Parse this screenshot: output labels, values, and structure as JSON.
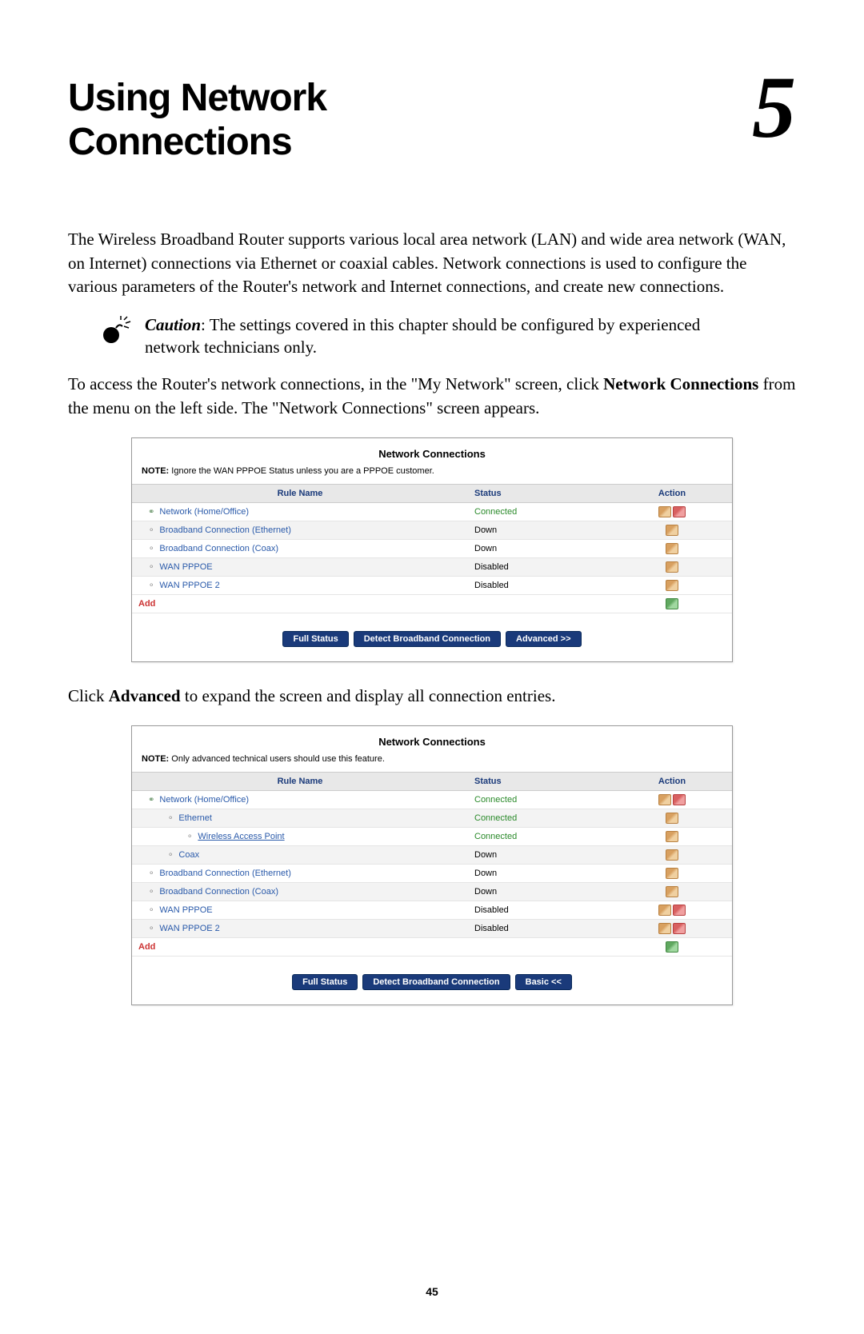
{
  "chapter": {
    "title_line1": "Using Network",
    "title_line2": "Connections",
    "number": "5"
  },
  "intro_paragraph": "The Wireless Broadband Router supports various local area network (LAN) and wide area network (WAN, on Internet) connections via Ethernet or coaxial cables. Network connections is used to configure the various parameters of the Router's network and Internet connections, and create new connections.",
  "caution": {
    "label": "Caution",
    "text": ": The settings covered in this chapter should be configured by experienced network technicians only."
  },
  "access_text": {
    "prefix": "To access the Router's network connections, in the \"My Network\" screen, click ",
    "bold": "Network Connections",
    "suffix": " from the menu on the left side. The \"Network Connections\" screen appears."
  },
  "screenshot1": {
    "title": "Network Connections",
    "note_label": "NOTE:",
    "note_text": " Ignore the WAN PPPOE Status unless you are a PPPOE customer.",
    "headers": {
      "rule": "Rule Name",
      "status": "Status",
      "action": "Action"
    },
    "rows": [
      {
        "name": "Network (Home/Office)",
        "status": "Connected",
        "status_class": "status-connected",
        "icon": "icon-net",
        "indent": 0,
        "actions": [
          "edit",
          "del"
        ],
        "alt": false
      },
      {
        "name": "Broadband Connection (Ethernet)",
        "status": "Down",
        "status_class": "status-down",
        "icon": "icon-plug",
        "indent": 0,
        "actions": [
          "edit"
        ],
        "alt": true
      },
      {
        "name": "Broadband Connection (Coax)",
        "status": "Down",
        "status_class": "status-down",
        "icon": "icon-plug",
        "indent": 0,
        "actions": [
          "edit"
        ],
        "alt": false
      },
      {
        "name": "WAN PPPOE",
        "status": "Disabled",
        "status_class": "status-disabled",
        "icon": "icon-plug",
        "indent": 0,
        "actions": [
          "edit"
        ],
        "alt": true
      },
      {
        "name": "WAN PPPOE 2",
        "status": "Disabled",
        "status_class": "status-disabled",
        "icon": "icon-plug",
        "indent": 0,
        "actions": [
          "edit"
        ],
        "alt": false
      }
    ],
    "add_label": "Add",
    "buttons": [
      "Full Status",
      "Detect Broadband Connection",
      "Advanced >>"
    ]
  },
  "click_text": {
    "prefix": "Click ",
    "bold": "Advanced",
    "suffix": " to expand the screen and display all connection entries."
  },
  "screenshot2": {
    "title": "Network Connections",
    "note_label": "NOTE:",
    "note_text": " Only advanced technical users should use this feature.",
    "headers": {
      "rule": "Rule Name",
      "status": "Status",
      "action": "Action"
    },
    "rows": [
      {
        "name": "Network (Home/Office)",
        "status": "Connected",
        "status_class": "status-connected",
        "icon": "icon-net",
        "indent": 0,
        "actions": [
          "edit",
          "del"
        ],
        "alt": false,
        "underline": false
      },
      {
        "name": "Ethernet",
        "status": "Connected",
        "status_class": "status-connected",
        "icon": "icon-plug",
        "indent": 1,
        "actions": [
          "edit"
        ],
        "alt": true,
        "underline": false
      },
      {
        "name": "Wireless Access Point",
        "status": "Connected",
        "status_class": "status-connected",
        "icon": "icon-plug",
        "indent": 2,
        "actions": [
          "edit"
        ],
        "alt": false,
        "underline": true
      },
      {
        "name": "Coax",
        "status": "Down",
        "status_class": "status-down",
        "icon": "icon-plug",
        "indent": 1,
        "actions": [
          "edit"
        ],
        "alt": true,
        "underline": false
      },
      {
        "name": "Broadband Connection (Ethernet)",
        "status": "Down",
        "status_class": "status-down",
        "icon": "icon-plug",
        "indent": 0,
        "actions": [
          "edit"
        ],
        "alt": false,
        "underline": false
      },
      {
        "name": "Broadband Connection (Coax)",
        "status": "Down",
        "status_class": "status-down",
        "icon": "icon-plug",
        "indent": 0,
        "actions": [
          "edit"
        ],
        "alt": true,
        "underline": false
      },
      {
        "name": "WAN PPPOE",
        "status": "Disabled",
        "status_class": "status-disabled",
        "icon": "icon-plug",
        "indent": 0,
        "actions": [
          "edit",
          "del"
        ],
        "alt": false,
        "underline": false
      },
      {
        "name": "WAN PPPOE 2",
        "status": "Disabled",
        "status_class": "status-disabled",
        "icon": "icon-plug",
        "indent": 0,
        "actions": [
          "edit",
          "del"
        ],
        "alt": true,
        "underline": false
      }
    ],
    "add_label": "Add",
    "buttons": [
      "Full Status",
      "Detect Broadband Connection",
      "Basic <<"
    ]
  },
  "page_number": "45",
  "colors": {
    "heading": "#000000",
    "link": "#2a5aaa",
    "connected": "#2a8a2a",
    "button_bg": "#1a3a7a",
    "add": "#cc3333"
  }
}
